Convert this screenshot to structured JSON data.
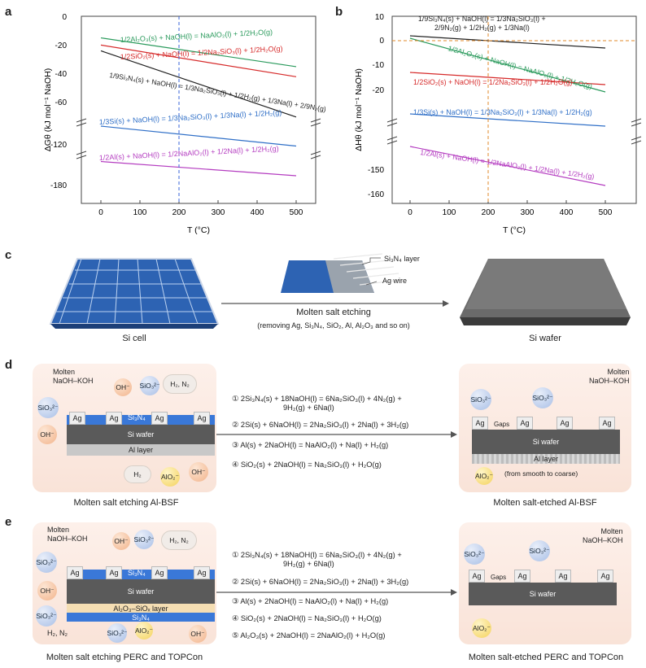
{
  "panels": {
    "a": "a",
    "b": "b",
    "c": "c",
    "d": "d",
    "e": "e"
  },
  "chart_data": [
    {
      "type": "line",
      "title": "",
      "xlabel": "T (°C)",
      "ylabel": "ΔG° (kJ mol⁻¹ NaOH)",
      "x_ticks": [
        0,
        100,
        200,
        300,
        400,
        500
      ],
      "y_ticks_upper": [
        0,
        -20,
        -40,
        -60
      ],
      "y_ticks_lower": [
        -120,
        -180
      ],
      "vline": 200,
      "series": [
        {
          "name": "1/2Al₂O₃(s) + NaOH(l) = NaAlO₂(l) + 1/2H₂O(g)",
          "x": [
            0,
            500
          ],
          "y": [
            -15,
            -35
          ],
          "color": "#2a9a5c"
        },
        {
          "name": "1/2SiO₂(s) + NaOH(l) = 1/2Na₂SiO₃(l) + 1/2H₂O(g)",
          "x": [
            0,
            500
          ],
          "y": [
            -20,
            -42
          ],
          "color": "#d62a2a"
        },
        {
          "name": "1/9Si₃N₄(s) + NaOH(l) = 1/3Na₂SiO₃(l) + 1/2H₂(g) + 1/3Na(l) + 2/9N₂(g)",
          "x": [
            0,
            500
          ],
          "y": [
            -24,
            -70
          ],
          "color": "#222222"
        },
        {
          "name": "1/3Si(s) + NaOH(l) = 1/3Na₂SiO₃(l) + 1/3Na(l) + 1/2H₂(g)",
          "x": [
            0,
            500
          ],
          "y": [
            -108,
            -122
          ],
          "color": "#2f6fc7"
        },
        {
          "name": "1/2Al(s) + NaOH(l) = 1/2NaAlO₂(l) + 1/2Na(l) + 1/2H₂(g)",
          "x": [
            0,
            500
          ],
          "y": [
            -162,
            -172
          ],
          "color": "#b43cc0"
        }
      ]
    },
    {
      "type": "line",
      "title": "",
      "xlabel": "T (°C)",
      "ylabel": "ΔH° (kJ mol⁻¹ NaOH)",
      "x_ticks": [
        0,
        100,
        200,
        300,
        400,
        500
      ],
      "y_ticks_upper": [
        10,
        0,
        -10,
        -20
      ],
      "y_ticks_lower": [
        -150,
        -160
      ],
      "vline": 200,
      "hline": 0,
      "series": [
        {
          "name": "1/9Si₃N₄(s) + NaOH(l) = 1/3Na₂SiO₃(l) + 2/9N₂(g) + 1/2H₂(g) + 1/3Na(l)",
          "x": [
            0,
            500
          ],
          "y": [
            2,
            -3
          ],
          "color": "#222222"
        },
        {
          "name": "1/2Al₂O₃(s) + NaOH(l) = NaAlO₂(l) + 1/2H₂O(g)",
          "x": [
            0,
            500
          ],
          "y": [
            1,
            -21
          ],
          "color": "#2a9a5c"
        },
        {
          "name": "1/2SiO₂(s) + NaOH(l) = 1/2Na₂SiO₃(l) + 1/2H₂O(g)",
          "x": [
            0,
            500
          ],
          "y": [
            -13,
            -18
          ],
          "color": "#d62a2a"
        },
        {
          "name": "1/3Si(s) + NaOH(l) = 1/3Na₂SiO₃(l) + 1/3Na(l) + 1/2H₂(g)",
          "x": [
            0,
            500
          ],
          "y": [
            -30,
            -35
          ],
          "color": "#2f6fc7"
        },
        {
          "name": "1/2Al(s) + NaOH(l) = 1/2NaAlO₂(l) + 1/2Na(l) + 1/2H₂(g)",
          "x": [
            0,
            500
          ],
          "y": [
            -146,
            -162
          ],
          "color": "#b43cc0"
        }
      ]
    }
  ],
  "axis_a": {
    "y0": "0",
    "y1": "-20",
    "y2": "-40",
    "y3": "-60",
    "y4": "-120",
    "y5": "-180",
    "xlabel": "T (°C)",
    "ylabel": "ΔGθ (kJ mol⁻¹ NaOH)"
  },
  "axis_b": {
    "y0": "10",
    "y1": "0",
    "y2": "-10",
    "y3": "-20",
    "y4": "-150",
    "y5": "-160",
    "xlabel": "T (°C)",
    "ylabel": "ΔHθ (kJ mol⁻¹ NaOH)"
  },
  "xticks": [
    "0",
    "100",
    "200",
    "300",
    "400",
    "500"
  ],
  "labels_a": {
    "al2o3": "1/2Al₂O₃(s) + NaOH(l) = NaAlO₂(l) + 1/2H₂O(g)",
    "sio2": "1/2SiO₂(s) + NaOH(l) = 1/2Na₂SiO₃(l) + 1/2H₂O(g)",
    "si3n4_1": "1/9Si₃N₄(s) + NaOH(l) = 1/3Na₂SiO₃(l) + 1/2H₂(g) + 1/3Na(l) + 2/9N₂(g) +",
    "si": "1/3Si(s) + NaOH(l) = 1/3Na₂SiO₃(l) + 1/3Na(l) + 1/2H₂(g)",
    "al": "1/2Al(s) + NaOH(l) = 1/2NaAlO₂(l) + 1/2Na(l) + 1/2H₂(g)"
  },
  "labels_b": {
    "si3n4_1": "1/9Si₃N₄(s) + NaOH(l) = 1/3Na₂SiO₃(l) +",
    "si3n4_2": "2/9N₂(g) + 1/2H₂(g) + 1/3Na(l)",
    "al2o3": "1/2Al₂O₃(s) + NaOH(l) = NaAlO₂(l) + 1/2H₂O(g)",
    "sio2": "1/2SiO₂(s) + NaOH(l) = 1/2Na₂SiO₃(l) + 1/2H₂O(g)",
    "si": "1/3Si(s) + NaOH(l) = 1/3Na₂SiO₃(l) + 1/3Na(l) + 1/2H₂(g)",
    "al": "1/2Al(s) + NaOH(l) = 1/2NaAlO₂(l) + 1/2Na(l) + 1/2H₂(g)"
  },
  "panel_c": {
    "si_cell": "Si cell",
    "si_wafer": "Si wafer",
    "si3n4_layer": "Si₃N₄ layer",
    "ag_wire": "Ag wire",
    "process": "Molten salt etching",
    "removing": "(removing Ag, Si₃N₄, SiO₂, Al, Al₂O₃ and so on)"
  },
  "panel_d": {
    "molten": "Molten",
    "naoh_koh": "NaOH–KOH",
    "oh": "OH⁻",
    "sio3": "SiO₃²⁻",
    "h2n2": "H₂, N₂",
    "h2": "H₂",
    "alo2": "AlO₂⁻",
    "ag": "Ag",
    "si3n4": "Si₃N₄",
    "si_wafer": "Si wafer",
    "al_layer": "Al layer",
    "caption_left": "Molten salt etching Al-BSF",
    "caption_right": "Molten salt-etched Al-BSF",
    "gaps": "Gaps",
    "coarse": "(from smooth to coarse)",
    "eq1": "① 2Si₃N₄(s) + 18NaOH(l) = 6Na₂SiO₃(l) + 4N₂(g) +",
    "eq1b": "9H₂(g) + 6Na(l)",
    "eq2": "② 2Si(s) + 6NaOH(l) = 2Na₂SiO₃(l) + 2Na(l) + 3H₂(g)",
    "eq3": "③ Al(s) + 2NaOH(l) = NaAlO₂(l) + Na(l) + H₂(g)",
    "eq4": "④ SiO₂(s) + 2NaOH(l) = Na₂SiO₃(l) + H₂O(g)"
  },
  "panel_e": {
    "molten": "Molten",
    "naoh_koh": "NaOH–KOH",
    "oh": "OH⁻",
    "sio3": "SiO₃²⁻",
    "h2n2": "H₂, N₂",
    "h2n2b": "H₂, N₂",
    "alo2": "AlO₂⁻",
    "ag": "Ag",
    "si3n4": "Si₃N₄",
    "si_wafer": "Si wafer",
    "al2o3_sio": "Al₂O₃–SiOₓ layer",
    "caption_left": "Molten salt etching PERC and TOPCon",
    "caption_right": "Molten salt-etched PERC and TOPCon",
    "gaps": "Gaps",
    "eq1": "① 2Si₃N₄(s) + 18NaOH(l) = 6Na₂SiO₃(l) + 4N₂(g) +",
    "eq1b": "9H₂(g) + 6Na(l)",
    "eq2": "② 2Si(s) + 6NaOH(l) = 2Na₂SiO₃(l) + 2Na(l) + 3H₂(g)",
    "eq3": "③ Al(s) + 2NaOH(l) = NaAlO₂(l) + Na(l) + H₂(g)",
    "eq4": "④ SiO₂(s) + 2NaOH(l) = Na₂SiO₃(l) + H₂O(g)",
    "eq5": "⑤ Al₂O₃(s) + 2NaOH(l) = 2NaAlO₂(l) + H₂O(g)"
  }
}
